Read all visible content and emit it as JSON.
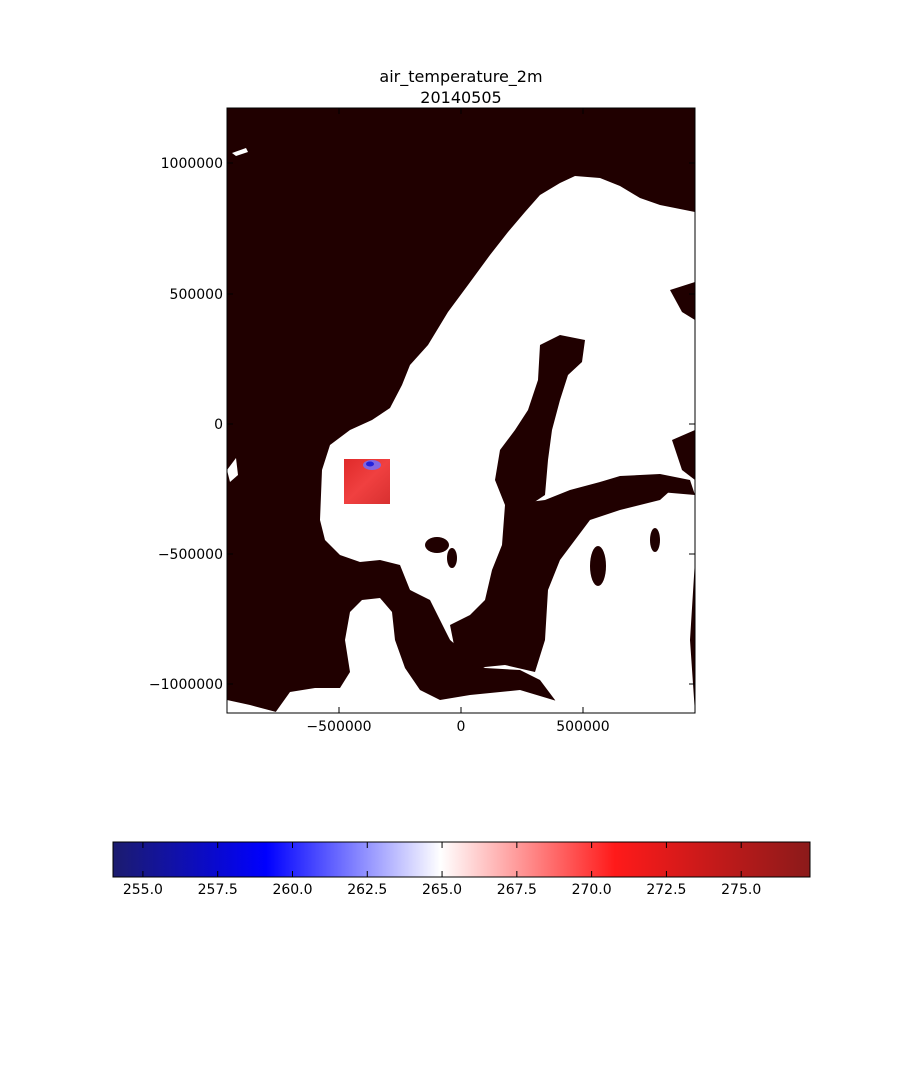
{
  "figure": {
    "title_line1": "air_temperature_2m",
    "title_line2": "20140505"
  },
  "map": {
    "x_ticks": [
      "−500000",
      "0",
      "500000"
    ],
    "y_ticks": [
      "1000000",
      "500000",
      "0",
      "−500000",
      "−1000000"
    ],
    "background_color": "#200000",
    "land_color": "#ffffff",
    "xlim": [
      -900000,
      900000
    ],
    "ylim": [
      -1100000,
      1200000
    ],
    "data_patch": {
      "x_range": [
        -450000,
        -280000
      ],
      "y_range": [
        -310000,
        -140000
      ],
      "dominant_value": 271.5,
      "cold_spot_value": 258.0
    }
  },
  "colorbar": {
    "tick_labels": [
      "255.0",
      "257.5",
      "260.0",
      "262.5",
      "265.0",
      "267.5",
      "270.0",
      "272.5",
      "275.0"
    ],
    "tick_values": [
      255.0,
      257.5,
      260.0,
      262.5,
      265.0,
      267.5,
      270.0,
      272.5,
      275.0
    ],
    "vmin": 254.0,
    "vmax": 277.3,
    "colormap": "seismic",
    "colors": {
      "min": "#1c1c6e",
      "low": "#0000ff",
      "mid": "#ffffff",
      "high": "#ff1a1a",
      "max": "#8b1a1a"
    }
  }
}
